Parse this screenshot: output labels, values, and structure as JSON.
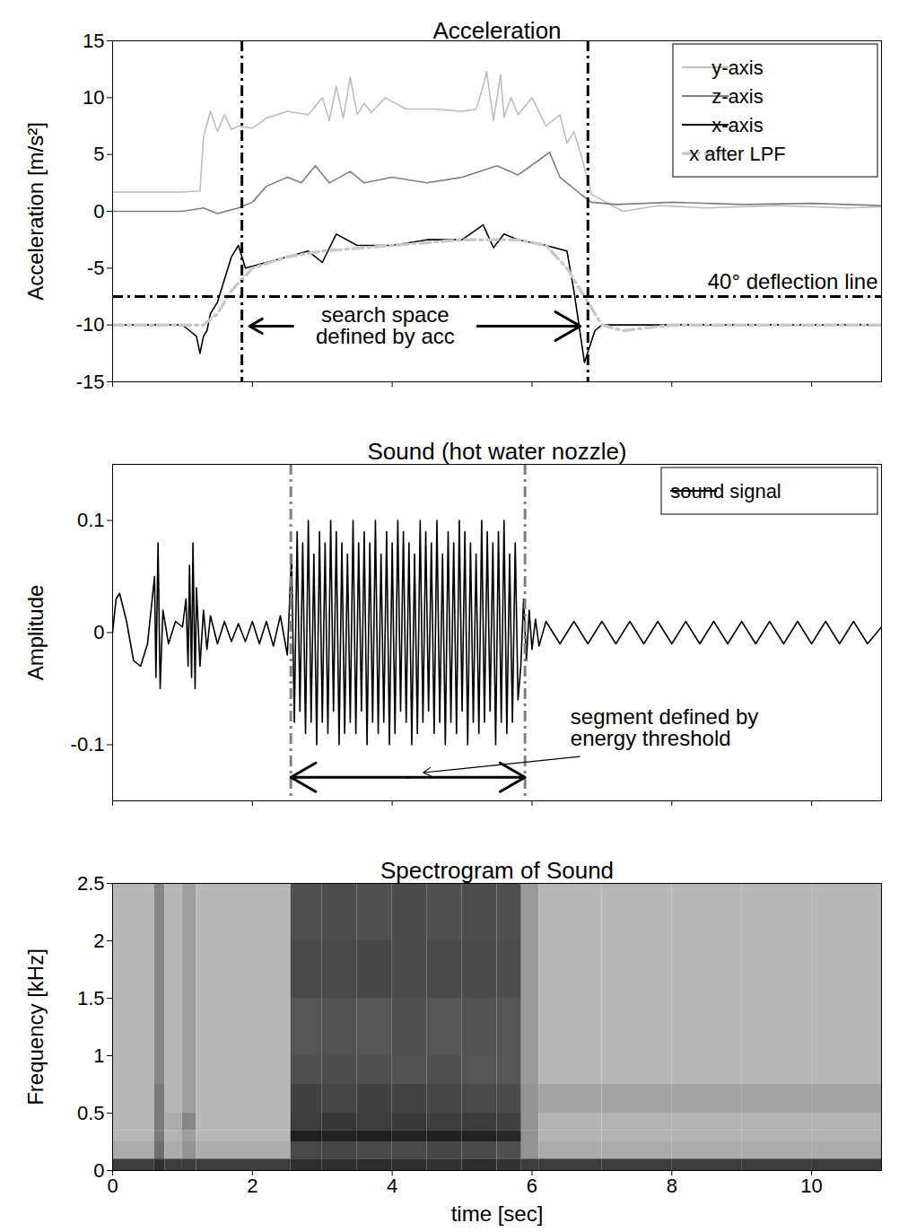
{
  "chart_data": [
    {
      "type": "line",
      "title": "Acceleration",
      "ylabel": "Acceleration [m/s²]",
      "xlim": [
        0,
        11
      ],
      "xticks": [
        0,
        2,
        4,
        6,
        8,
        10
      ],
      "ylim": [
        -15,
        15
      ],
      "yticks": [
        -15,
        -10,
        -5,
        0,
        5,
        10,
        15
      ],
      "tick_labels": "y",
      "grid": false,
      "legend": "top-right",
      "series": [
        {
          "name": "y-axis",
          "color": "#bdbdbd",
          "line_style": "solid",
          "x": [
            0,
            0.5,
            1,
            1.25,
            1.3,
            1.4,
            1.5,
            1.6,
            1.7,
            1.8,
            2.0,
            2.2,
            2.5,
            2.8,
            3.0,
            3.1,
            3.2,
            3.3,
            3.4,
            3.5,
            3.6,
            3.7,
            3.9,
            4.2,
            4.6,
            5.0,
            5.2,
            5.3,
            5.35,
            5.45,
            5.55,
            5.6,
            5.7,
            5.8,
            6.0,
            6.2,
            6.4,
            6.5,
            6.6,
            6.7,
            6.85,
            7.0,
            7.3,
            7.8,
            8.5,
            9.5,
            10.5,
            11
          ],
          "values": [
            1.7,
            1.7,
            1.7,
            1.8,
            6.5,
            8.8,
            7,
            8.5,
            7.2,
            7.5,
            7.3,
            8.2,
            8.8,
            8.5,
            10,
            8,
            11,
            8.2,
            11.8,
            8.5,
            9.5,
            8.7,
            10,
            9,
            9,
            8.8,
            9,
            11,
            12.3,
            8,
            12,
            8.3,
            10,
            8.5,
            10,
            7.5,
            8.5,
            6,
            7,
            5,
            1.5,
            1,
            0,
            0.5,
            0.3,
            0.5,
            0.3,
            0.4
          ]
        },
        {
          "name": "z-axis",
          "color": "#7f7f7f",
          "line_style": "solid",
          "x": [
            0,
            1,
            1.3,
            1.5,
            1.8,
            2.0,
            2.2,
            2.5,
            2.7,
            2.9,
            3.1,
            3.4,
            3.6,
            4.0,
            4.5,
            5.0,
            5.5,
            5.8,
            6.1,
            6.25,
            6.4,
            6.5,
            6.7,
            6.85,
            7.2,
            8,
            9,
            10,
            11
          ],
          "values": [
            0,
            0,
            0.3,
            -0.2,
            0.3,
            0.8,
            2.2,
            3,
            2.5,
            4,
            2.5,
            3.5,
            2.5,
            3,
            2.5,
            3,
            4,
            3.2,
            4.5,
            5.2,
            3,
            2.5,
            1.5,
            0.8,
            0.6,
            0.8,
            0.6,
            0.7,
            0.5
          ]
        },
        {
          "name": "x-axis",
          "color": "#000000",
          "line_style": "solid",
          "x": [
            0,
            0.5,
            1,
            1.1,
            1.2,
            1.25,
            1.3,
            1.35,
            1.4,
            1.5,
            1.6,
            1.7,
            1.8,
            1.9,
            2.2,
            2.5,
            2.8,
            3.0,
            3.2,
            3.5,
            4.0,
            4.5,
            5.0,
            5.3,
            5.45,
            5.6,
            5.8,
            6.2,
            6.5,
            6.6,
            6.75,
            6.9,
            7.0,
            8,
            9,
            10,
            11
          ],
          "values": [
            -10,
            -10,
            -10,
            -10.5,
            -11,
            -12.5,
            -11,
            -10.5,
            -9,
            -8,
            -6,
            -4,
            -3,
            -5,
            -4.5,
            -4,
            -3.5,
            -4.5,
            -2,
            -3,
            -3,
            -2.5,
            -2.5,
            -1.2,
            -3.2,
            -2,
            -2.5,
            -3,
            -3.5,
            -7,
            -13.3,
            -10.5,
            -10,
            -10,
            -10,
            -10,
            -10
          ]
        },
        {
          "name": "x after LPF",
          "color": "#c8c8c8",
          "line_style": "dashdot",
          "x": [
            0,
            1,
            1.3,
            1.5,
            1.7,
            2.0,
            2.5,
            3.0,
            4.0,
            5.0,
            5.8,
            6.2,
            6.5,
            6.8,
            7.0,
            7.3,
            8,
            11
          ],
          "values": [
            -10,
            -10,
            -10,
            -9,
            -7,
            -5,
            -4,
            -3.5,
            -3,
            -2.5,
            -2.5,
            -3,
            -5,
            -8,
            -10,
            -10.5,
            -10,
            -10
          ]
        }
      ],
      "reference_lines": [
        {
          "axis": "x",
          "values": [
            1.85,
            6.8
          ],
          "color": "#000000",
          "line_style": "dashdot"
        },
        {
          "axis": "y",
          "values": [
            -7.5
          ],
          "label": "40° deflection line",
          "color": "#000000",
          "line_style": "dashdot"
        }
      ],
      "annotations": [
        {
          "text": "search space\ndefined by acc",
          "x": 3.9,
          "y": -10.1,
          "marker": "arrows"
        }
      ]
    },
    {
      "type": "line",
      "title": "Sound (hot water nozzle)",
      "ylabel": "Amplitude",
      "xlim": [
        0,
        11
      ],
      "xticks": [
        0,
        2,
        4,
        6,
        8,
        10
      ],
      "ylim": [
        -0.15,
        0.15
      ],
      "yticks": [
        -0.1,
        0,
        0.1
      ],
      "tick_labels": "y",
      "grid": false,
      "legend": "top-right",
      "series": [
        {
          "name": "sound signal",
          "color": "#000000",
          "line_style": "solid",
          "x": [
            0,
            0.05,
            0.1,
            0.2,
            0.3,
            0.4,
            0.5,
            0.6,
            0.62,
            0.65,
            0.68,
            0.72,
            0.8,
            0.9,
            1.0,
            1.05,
            1.08,
            1.1,
            1.13,
            1.15,
            1.18,
            1.2,
            1.25,
            1.3,
            1.35,
            1.4,
            1.5,
            1.6,
            1.7,
            1.8,
            1.9,
            2.0,
            2.1,
            2.2,
            2.3,
            2.4,
            2.5,
            2.56,
            2.6,
            2.64,
            2.68,
            2.72,
            2.76,
            2.8,
            2.84,
            2.88,
            2.92,
            2.96,
            3,
            3.04,
            3.08,
            3.12,
            3.16,
            3.2,
            3.24,
            3.28,
            3.32,
            3.36,
            3.4,
            3.44,
            3.48,
            3.52,
            3.56,
            3.6,
            3.64,
            3.68,
            3.72,
            3.76,
            3.8,
            3.84,
            3.88,
            3.92,
            3.96,
            4,
            4.04,
            4.08,
            4.12,
            4.16,
            4.2,
            4.24,
            4.28,
            4.32,
            4.36,
            4.4,
            4.44,
            4.48,
            4.52,
            4.56,
            4.6,
            4.64,
            4.68,
            4.72,
            4.76,
            4.8,
            4.84,
            4.88,
            4.92,
            4.96,
            5,
            5.04,
            5.08,
            5.12,
            5.16,
            5.2,
            5.24,
            5.28,
            5.32,
            5.36,
            5.4,
            5.44,
            5.48,
            5.52,
            5.56,
            5.6,
            5.64,
            5.68,
            5.72,
            5.76,
            5.8,
            5.84,
            5.88,
            5.92,
            5.96,
            6.0,
            6.05,
            6.1,
            6.2,
            6.4,
            6.6,
            6.8,
            7,
            7.2,
            7.4,
            7.6,
            7.8,
            8,
            8.2,
            8.4,
            8.6,
            8.8,
            9,
            9.2,
            9.4,
            9.6,
            9.8,
            10,
            10.2,
            10.4,
            10.6,
            10.8,
            11
          ],
          "values": [
            0,
            0.03,
            0.035,
            0.01,
            -0.025,
            -0.03,
            -0.01,
            0.05,
            -0.04,
            0.08,
            -0.05,
            0.02,
            -0.01,
            0.01,
            0.005,
            0.03,
            -0.03,
            0.06,
            -0.04,
            0.08,
            -0.05,
            0.04,
            -0.03,
            0.02,
            -0.015,
            0.015,
            -0.01,
            0.01,
            -0.008,
            0.008,
            -0.008,
            0.01,
            -0.01,
            0.01,
            -0.012,
            0.015,
            -0.02,
            0.07,
            -0.08,
            0.09,
            -0.07,
            0.08,
            -0.09,
            0.1,
            -0.08,
            0.07,
            -0.1,
            0.09,
            -0.08,
            0.08,
            -0.09,
            0.1,
            -0.07,
            0.09,
            -0.1,
            0.08,
            -0.09,
            0.07,
            -0.08,
            0.1,
            -0.09,
            0.08,
            -0.07,
            0.09,
            -0.1,
            0.08,
            -0.08,
            0.1,
            -0.09,
            0.07,
            -0.08,
            0.09,
            -0.1,
            0.08,
            -0.09,
            0.1,
            -0.07,
            0.09,
            -0.08,
            0.08,
            -0.1,
            0.07,
            -0.09,
            0.1,
            -0.08,
            0.09,
            -0.07,
            0.08,
            -0.09,
            0.1,
            -0.08,
            0.07,
            -0.1,
            0.09,
            -0.08,
            0.08,
            -0.09,
            0.1,
            -0.07,
            0.09,
            -0.1,
            0.08,
            -0.08,
            0.07,
            -0.09,
            0.1,
            -0.08,
            0.09,
            -0.07,
            0.08,
            -0.1,
            0.09,
            -0.08,
            0.1,
            -0.09,
            0.07,
            -0.08,
            0.08,
            -0.06,
            -0.03,
            0.03,
            -0.025,
            0.02,
            -0.015,
            0.012,
            -0.012,
            0.01,
            -0.01,
            0.01,
            -0.01,
            0.01,
            -0.01,
            0.01,
            -0.01,
            0.01,
            -0.01,
            0.01,
            -0.01,
            0.01,
            -0.01,
            0.01,
            -0.01,
            0.01,
            -0.01,
            0.01,
            -0.01,
            0.01,
            -0.01,
            0.01,
            -0.01,
            0.005
          ]
        }
      ],
      "reference_lines": [
        {
          "axis": "x",
          "values": [
            2.55,
            5.9
          ],
          "color": "#808080",
          "line_style": "dashdot"
        }
      ],
      "annotations": [
        {
          "text": "segment defined by\nenergy threshold",
          "x": 6.55,
          "y": -0.085,
          "marker": "leader"
        }
      ]
    },
    {
      "type": "heatmap",
      "title": "Spectrogram of Sound",
      "xlabel": "time [sec]",
      "ylabel": "Frequency [kHz]",
      "xlim": [
        0,
        11
      ],
      "xticks": [
        0,
        2,
        4,
        6,
        8,
        10
      ],
      "ylim": [
        0,
        2.5
      ],
      "yticks": [
        0,
        0.5,
        1,
        1.5,
        2,
        2.5
      ],
      "grid": false,
      "spectrogram": {
        "time_edges": [
          0,
          0.6,
          0.75,
          1,
          1.2,
          2.55,
          3,
          3.5,
          4,
          4.5,
          5,
          5.5,
          5.85,
          6.1,
          7,
          8,
          9,
          10,
          11
        ],
        "frequency_edges": [
          0,
          0.1,
          0.25,
          0.35,
          0.5,
          0.75,
          1,
          1.5,
          2,
          2.5
        ],
        "cells": [
          [
            0.8,
            0.35,
            0.3,
            0.3,
            0.3,
            0.3,
            0.3,
            0.3,
            0.3
          ],
          [
            0.85,
            0.6,
            0.55,
            0.55,
            0.55,
            0.5,
            0.5,
            0.5,
            0.5
          ],
          [
            0.8,
            0.35,
            0.32,
            0.35,
            0.3,
            0.3,
            0.3,
            0.3,
            0.3
          ],
          [
            0.8,
            0.45,
            0.4,
            0.5,
            0.4,
            0.4,
            0.4,
            0.4,
            0.4
          ],
          [
            0.8,
            0.35,
            0.3,
            0.3,
            0.3,
            0.3,
            0.3,
            0.3,
            0.3
          ],
          [
            0.85,
            0.75,
            0.92,
            0.8,
            0.78,
            0.72,
            0.7,
            0.74,
            0.72
          ],
          [
            0.85,
            0.76,
            0.9,
            0.82,
            0.76,
            0.73,
            0.71,
            0.75,
            0.73
          ],
          [
            0.86,
            0.74,
            0.92,
            0.8,
            0.78,
            0.72,
            0.7,
            0.76,
            0.72
          ],
          [
            0.85,
            0.75,
            0.9,
            0.81,
            0.77,
            0.71,
            0.72,
            0.74,
            0.74
          ],
          [
            0.84,
            0.76,
            0.91,
            0.79,
            0.76,
            0.72,
            0.7,
            0.75,
            0.72
          ],
          [
            0.85,
            0.74,
            0.9,
            0.8,
            0.75,
            0.7,
            0.71,
            0.74,
            0.73
          ],
          [
            0.84,
            0.72,
            0.88,
            0.78,
            0.74,
            0.7,
            0.7,
            0.73,
            0.72
          ],
          [
            0.8,
            0.45,
            0.45,
            0.45,
            0.45,
            0.42,
            0.42,
            0.42,
            0.42
          ],
          [
            0.8,
            0.35,
            0.32,
            0.32,
            0.38,
            0.3,
            0.3,
            0.3,
            0.3
          ],
          [
            0.8,
            0.35,
            0.32,
            0.32,
            0.38,
            0.3,
            0.3,
            0.3,
            0.3
          ],
          [
            0.8,
            0.35,
            0.32,
            0.32,
            0.38,
            0.3,
            0.3,
            0.3,
            0.3
          ],
          [
            0.8,
            0.35,
            0.32,
            0.32,
            0.38,
            0.3,
            0.3,
            0.3,
            0.3
          ],
          [
            0.8,
            0.35,
            0.32,
            0.32,
            0.38,
            0.3,
            0.3,
            0.3,
            0.3
          ]
        ]
      }
    }
  ]
}
